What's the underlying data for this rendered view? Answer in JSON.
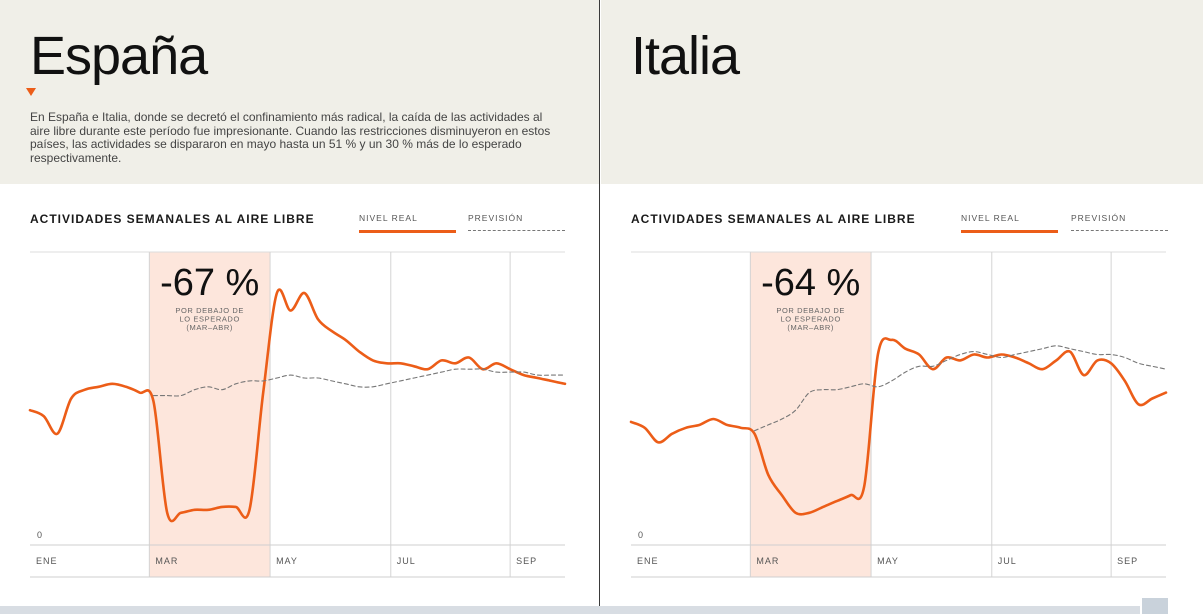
{
  "panels": [
    {
      "title": "España",
      "description": "En España e Italia, donde se decretó el confinamiento más radical, la caída de las actividades al aire libre durante este período fue impresionante. Cuando las restricciones disminuyeron en estos países, las actividades se dispararon en mayo hasta un 51 % y un 30 % más de lo esperado respectivamente.",
      "chart_title": "ACTIVIDADES SEMANALES AL AIRE LIBRE",
      "legend": {
        "real": "NIVEL REAL",
        "forecast": "PREVISIÓN"
      }
    },
    {
      "title": "Italia",
      "description": "",
      "chart_title": "ACTIVIDADES SEMANALES AL AIRE LIBRE",
      "legend": {
        "real": "NIVEL REAL",
        "forecast": "PREVISIÓN"
      }
    }
  ],
  "colors": {
    "real": "#ec5d18",
    "forecast": "#777777",
    "highlight": "#fde6dc",
    "header_bg": "#f0efe8"
  },
  "chart_data": [
    {
      "type": "line",
      "title": "ACTIVIDADES SEMANALES AL AIRE LIBRE",
      "x": [
        1,
        2,
        3,
        4,
        5,
        6,
        7,
        8,
        9,
        10,
        11,
        12,
        13,
        14,
        15,
        16,
        17,
        18,
        19,
        20,
        21,
        22,
        23,
        24,
        25,
        26,
        27,
        28,
        29,
        30,
        31,
        32,
        33,
        34,
        35,
        36,
        37,
        38,
        39,
        40
      ],
      "x_ticks": [
        {
          "x": 1,
          "label": "ENE"
        },
        {
          "x": 9.7,
          "label": "MAR"
        },
        {
          "x": 18.5,
          "label": "MAY"
        },
        {
          "x": 27.3,
          "label": "JUL"
        },
        {
          "x": 36,
          "label": "SEP"
        }
      ],
      "y_tick_label": "0",
      "ylim": [
        0,
        100
      ],
      "highlight": {
        "from": 9.7,
        "to": 18.5,
        "value": "-67 %",
        "label": [
          "POR DEBAJO DE",
          "LO ESPERADO",
          "(MAR–ABR)"
        ]
      },
      "series": [
        {
          "name": "NIVEL REAL",
          "values": [
            46,
            44,
            38,
            50,
            53,
            54,
            55,
            54,
            52,
            49,
            11,
            11,
            12,
            12,
            13,
            13,
            12,
            52,
            86,
            80,
            86,
            77,
            73,
            70,
            66,
            63,
            62,
            62,
            61,
            60,
            63,
            62,
            64,
            60,
            62,
            60,
            58,
            57,
            56,
            55
          ]
        },
        {
          "name": "PREVISIÓN",
          "values": [
            null,
            null,
            null,
            null,
            null,
            null,
            null,
            null,
            null,
            51,
            51,
            51,
            53,
            54,
            53,
            55,
            56,
            56,
            57,
            58,
            57,
            57,
            56,
            55,
            54,
            54,
            55,
            56,
            57,
            58,
            59,
            60,
            60,
            60,
            59,
            59,
            59,
            58,
            58,
            58
          ]
        }
      ]
    },
    {
      "type": "line",
      "title": "ACTIVIDADES SEMANALES AL AIRE LIBRE",
      "x": [
        1,
        2,
        3,
        4,
        5,
        6,
        7,
        8,
        9,
        10,
        11,
        12,
        13,
        14,
        15,
        16,
        17,
        18,
        19,
        20,
        21,
        22,
        23,
        24,
        25,
        26,
        27,
        28,
        29,
        30,
        31,
        32,
        33,
        34,
        35,
        36,
        37,
        38,
        39,
        40
      ],
      "x_ticks": [
        {
          "x": 1,
          "label": "ENE"
        },
        {
          "x": 9.7,
          "label": "MAR"
        },
        {
          "x": 18.5,
          "label": "MAY"
        },
        {
          "x": 27.3,
          "label": "JUL"
        },
        {
          "x": 36,
          "label": "SEP"
        }
      ],
      "y_tick_label": "0",
      "ylim": [
        0,
        100
      ],
      "highlight": {
        "from": 9.7,
        "to": 18.5,
        "value": "-64 %",
        "label": [
          "POR DEBAJO DE",
          "LO ESPERADO",
          "(MAR–ABR)"
        ]
      },
      "series": [
        {
          "name": "NIVEL REAL",
          "values": [
            42,
            40,
            35,
            38,
            40,
            41,
            43,
            41,
            40,
            38,
            24,
            17,
            11,
            11,
            13,
            15,
            17,
            20,
            65,
            70,
            67,
            65,
            60,
            64,
            63,
            65,
            64,
            65,
            64,
            62,
            60,
            63,
            66,
            58,
            63,
            62,
            56,
            48,
            50,
            52
          ]
        },
        {
          "name": "PREVISIÓN",
          "values": [
            null,
            null,
            null,
            null,
            null,
            null,
            null,
            null,
            null,
            39,
            41,
            43,
            46,
            52,
            53,
            53,
            54,
            55,
            54,
            56,
            59,
            61,
            61,
            63,
            65,
            66,
            65,
            64,
            65,
            66,
            67,
            68,
            67,
            66,
            65,
            65,
            64,
            62,
            61,
            60
          ]
        }
      ]
    }
  ]
}
